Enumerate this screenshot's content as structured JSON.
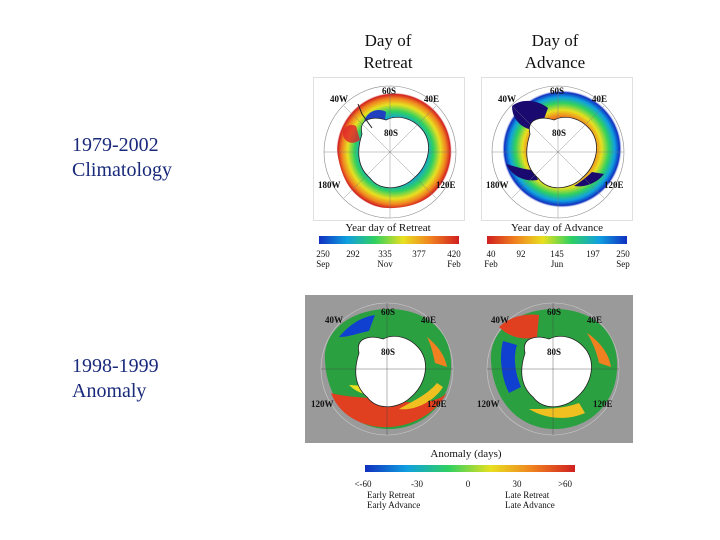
{
  "columns": {
    "retreat": [
      "Day of",
      "Retreat"
    ],
    "advance": [
      "Day of",
      "Advance"
    ]
  },
  "rows": {
    "climatology": [
      "1979-2002",
      "Climatology"
    ],
    "anomaly": [
      "1998-1999",
      "Anomaly"
    ]
  },
  "map_labels": {
    "w40": "40W",
    "e40": "40E",
    "w120": "120W",
    "e120": "120E",
    "w180": "180W",
    "s60": "60S",
    "s80": "80S"
  },
  "colorbars": {
    "retreat": {
      "title": "Year day of Retreat",
      "ticks": [
        {
          "value": "250",
          "sub": "Sep"
        },
        {
          "value": "292",
          "sub": ""
        },
        {
          "value": "335",
          "sub": "Nov"
        },
        {
          "value": "377",
          "sub": ""
        },
        {
          "value": "420",
          "sub": "Feb"
        }
      ]
    },
    "advance": {
      "title": "Year day of Advance",
      "ticks": [
        {
          "value": "40",
          "sub": "Feb"
        },
        {
          "value": "92",
          "sub": ""
        },
        {
          "value": "145",
          "sub": "Jun"
        },
        {
          "value": "197",
          "sub": ""
        },
        {
          "value": "250",
          "sub": "Sep"
        }
      ]
    },
    "anomaly": {
      "title": "Anomaly (days)",
      "ticks": [
        "<-60",
        "-30",
        "0",
        "30",
        ">60"
      ],
      "early": [
        "Early Retreat",
        "Early Advance"
      ],
      "late": [
        "Late Retreat",
        "Late Advance"
      ]
    }
  },
  "colors": {
    "accent_text": "#1a2a7a",
    "anomaly_bg": "#9a9a9a"
  }
}
